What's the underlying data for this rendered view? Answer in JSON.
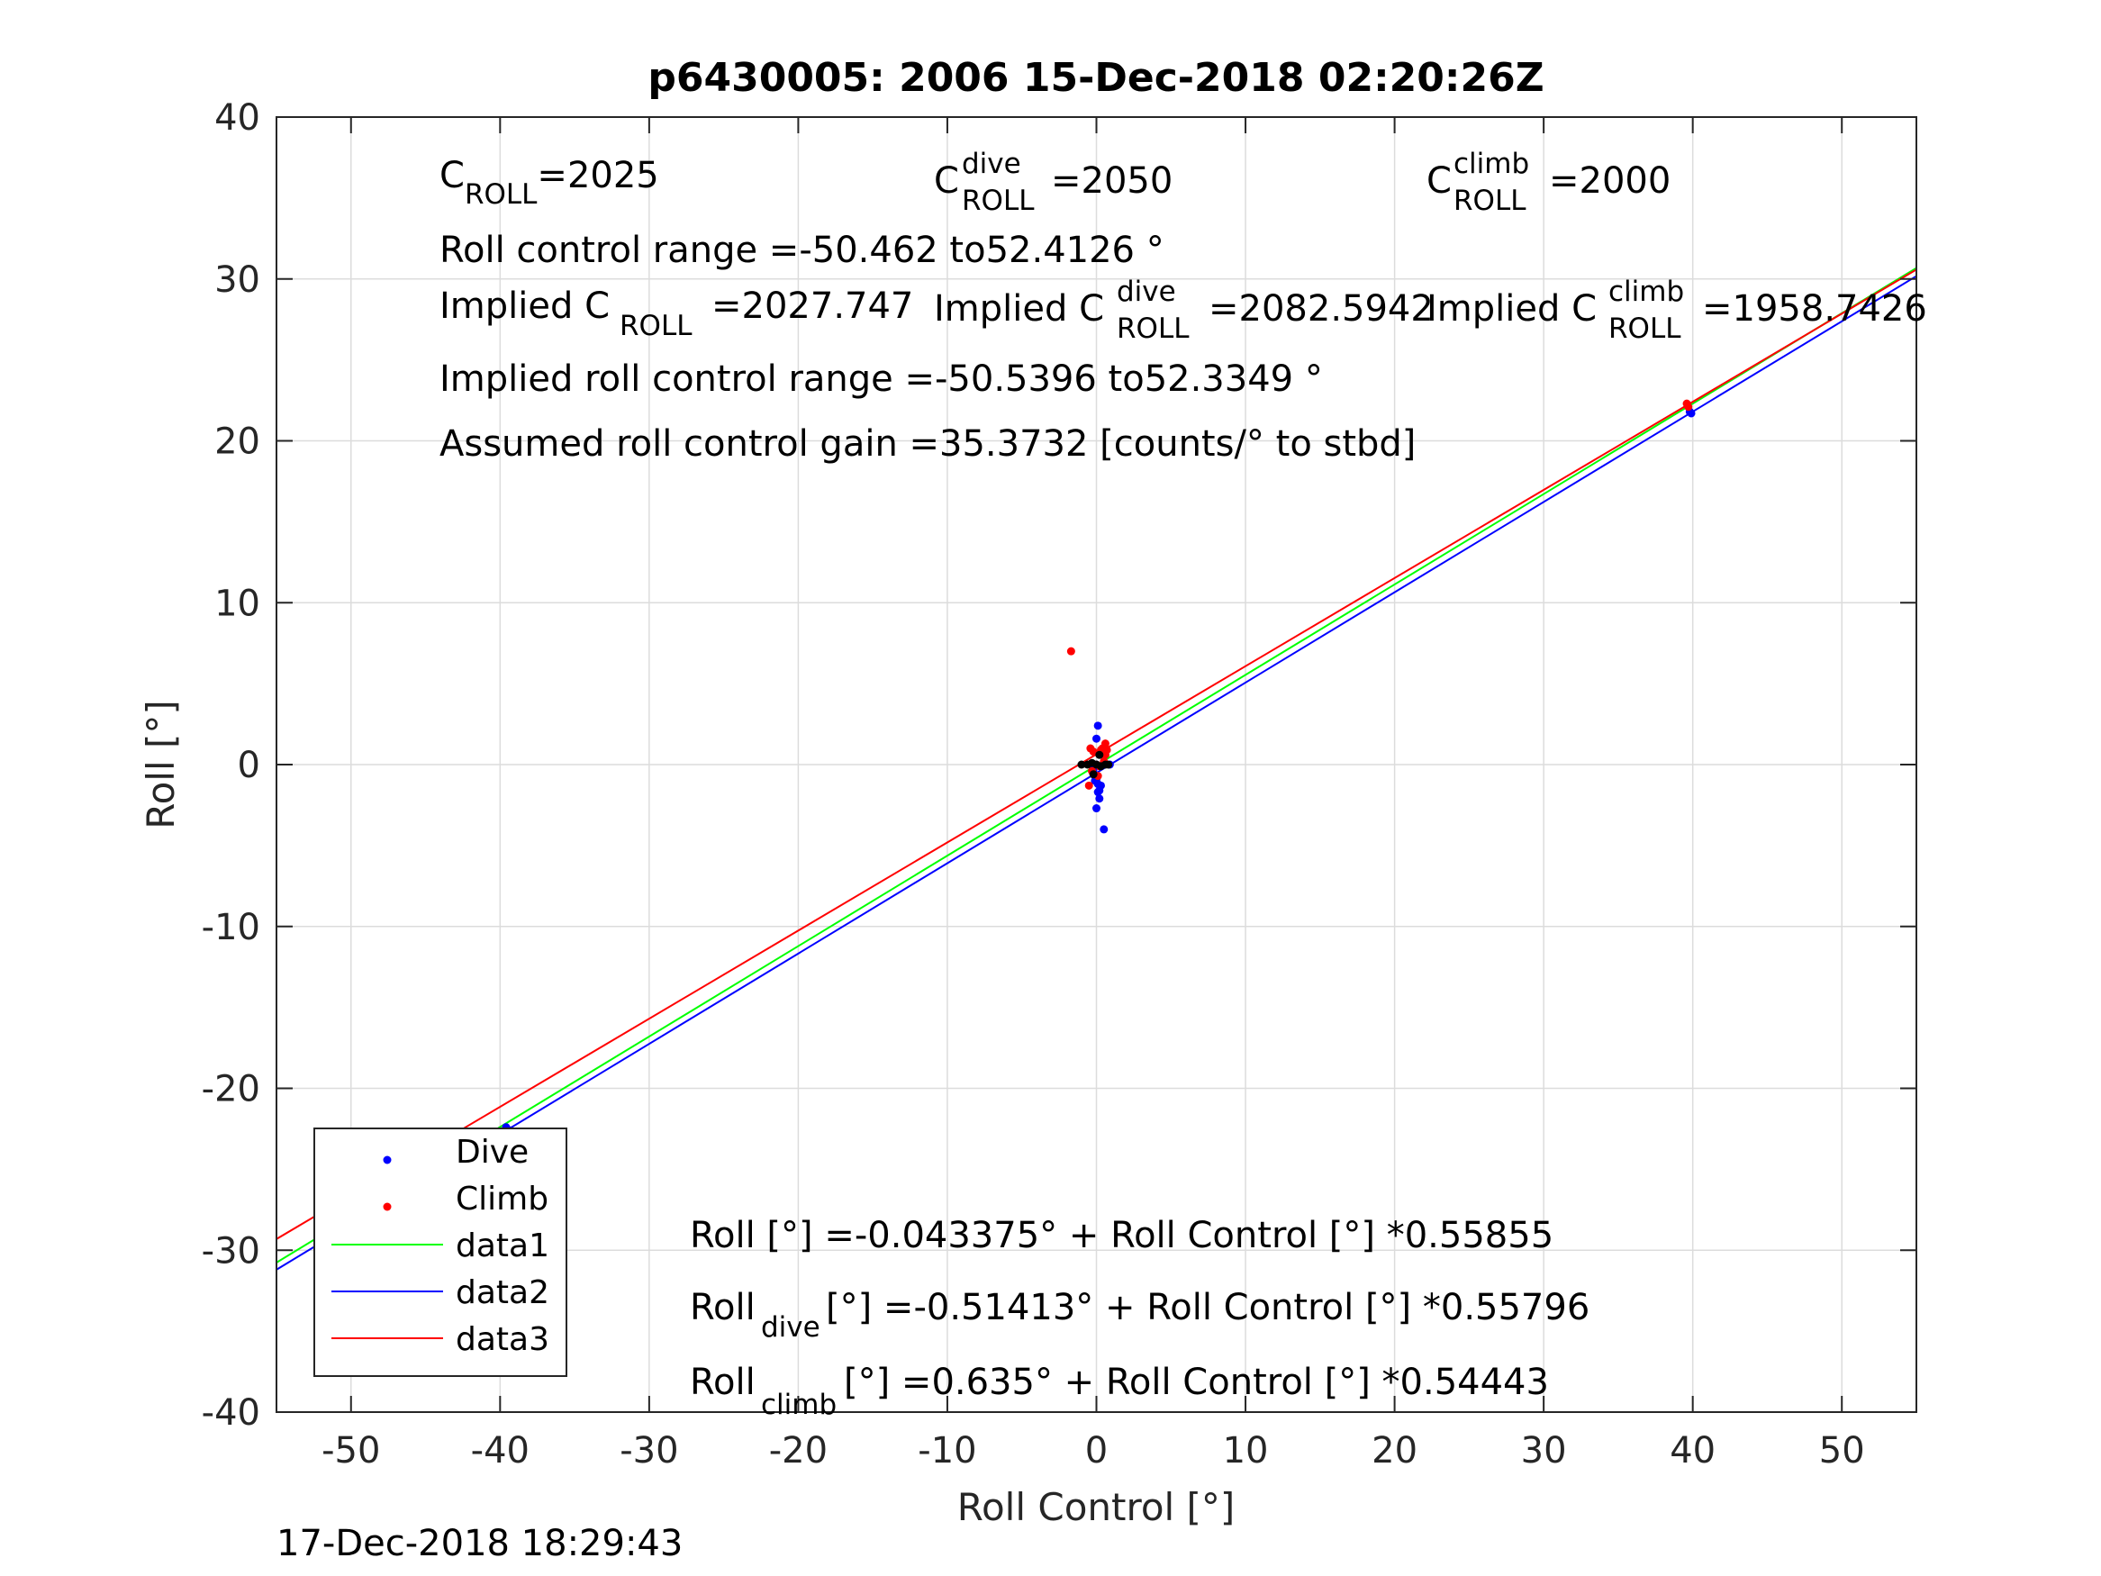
{
  "chart_data": {
    "type": "scatter",
    "title": "p6430005:  2006 15-Dec-2018 02:20:26Z",
    "xlabel": "Roll Control [°]",
    "ylabel": "Roll [°]",
    "xlim": [
      -55,
      55
    ],
    "ylim": [
      -40,
      40
    ],
    "xticks": [
      -50,
      -40,
      -30,
      -20,
      -10,
      0,
      10,
      20,
      30,
      40,
      50
    ],
    "yticks": [
      -40,
      -30,
      -20,
      -10,
      0,
      10,
      20,
      30,
      40
    ],
    "grid": true,
    "legend_position": "bottom-left",
    "legend": [
      "Dive",
      "Climb",
      "data1",
      "data2",
      "data3"
    ],
    "series": [
      {
        "name": "Dive",
        "mode": "markers",
        "color": "#0000ff",
        "x": [
          -39.6,
          -39.3,
          -39.5,
          -0.2,
          0.0,
          0.1,
          0.2,
          -0.1,
          0.0,
          0.3,
          0.1,
          -0.2,
          0.0,
          0.2,
          0.5,
          0.1,
          0.0,
          0.9,
          39.8,
          39.9
        ],
        "y": [
          -22.4,
          -22.6,
          -22.8,
          -0.6,
          -0.9,
          -1.2,
          -1.6,
          -1.0,
          -2.7,
          -1.3,
          2.4,
          -0.3,
          1.6,
          -2.1,
          -4.0,
          -1.7,
          0.0,
          0.0,
          21.8,
          21.7
        ]
      },
      {
        "name": "Climb",
        "mode": "markers",
        "color": "#ff0000",
        "x": [
          -1.7,
          -0.4,
          -0.2,
          0.3,
          0.6,
          0.6,
          0.4,
          -0.3,
          0.1,
          0.5,
          0.2,
          -0.5,
          0.0,
          0.7,
          39.6,
          39.7
        ],
        "y": [
          7.0,
          1.0,
          0.8,
          0.9,
          0.6,
          1.3,
          1.0,
          -0.4,
          -0.7,
          0.2,
          -0.1,
          -1.3,
          0.0,
          0.9,
          22.3,
          22.1
        ]
      },
      {
        "name": "",
        "mode": "markers",
        "color": "#000000",
        "x": [
          -1.0,
          -0.6,
          -0.3,
          0.0,
          0.3,
          0.6,
          0.8,
          -0.2,
          0.2
        ],
        "y": [
          0.0,
          0.0,
          0.1,
          0.0,
          -0.1,
          0.0,
          0.0,
          -0.6,
          0.6
        ]
      },
      {
        "name": "data1",
        "mode": "line",
        "color": "#00ff00",
        "x": [
          -55,
          55
        ],
        "y": [
          -30.763,
          30.677
        ]
      },
      {
        "name": "data2",
        "mode": "line",
        "color": "#0000ff",
        "x": [
          -55,
          55
        ],
        "y": [
          -31.202,
          30.174
        ]
      },
      {
        "name": "data3",
        "mode": "line",
        "color": "#ff0000",
        "x": [
          -55,
          55
        ],
        "y": [
          -29.309,
          30.579
        ]
      }
    ]
  },
  "top_annotations": {
    "c_roll": {
      "base": "C",
      "sub": "ROLL",
      "value": "=2025"
    },
    "c_roll_dive": {
      "base": "C",
      "sup": "dive",
      "sub": "ROLL",
      "value": "=2050"
    },
    "c_roll_climb": {
      "base": "C",
      "sup": "climb",
      "sub": "ROLL",
      "value": "=2000"
    },
    "roll_control_range": "Roll control range =-50.462 to52.4126 °",
    "implied_c_roll": {
      "prefix": "Implied C",
      "sub": "ROLL",
      "value": "=2027.747"
    },
    "implied_c_roll_dive": {
      "prefix": "Implied C",
      "sup": "dive",
      "sub": "ROLL",
      "value": "=2082.5942"
    },
    "implied_c_roll_climb": {
      "prefix": "Implied C",
      "sup": "climb",
      "sub": "ROLL",
      "value": "=1958.7426"
    },
    "implied_range": "Implied roll control range =-50.5396 to52.3349 °",
    "gain": "Assumed roll control gain =35.3732 [counts/° to stbd]"
  },
  "fit_equations": {
    "all": "Roll [°] =-0.043375° + Roll Control [°] *0.55855",
    "dive": {
      "base": "Roll",
      "sub": "dive",
      "rest": " [°] =-0.51413° + Roll Control [°] *0.55796"
    },
    "climb": {
      "base": "Roll",
      "sub": "climb",
      "rest": " [°] =0.635° + Roll Control [°] *0.54443"
    }
  },
  "footer_timestamp": "17-Dec-2018 18:29:43"
}
